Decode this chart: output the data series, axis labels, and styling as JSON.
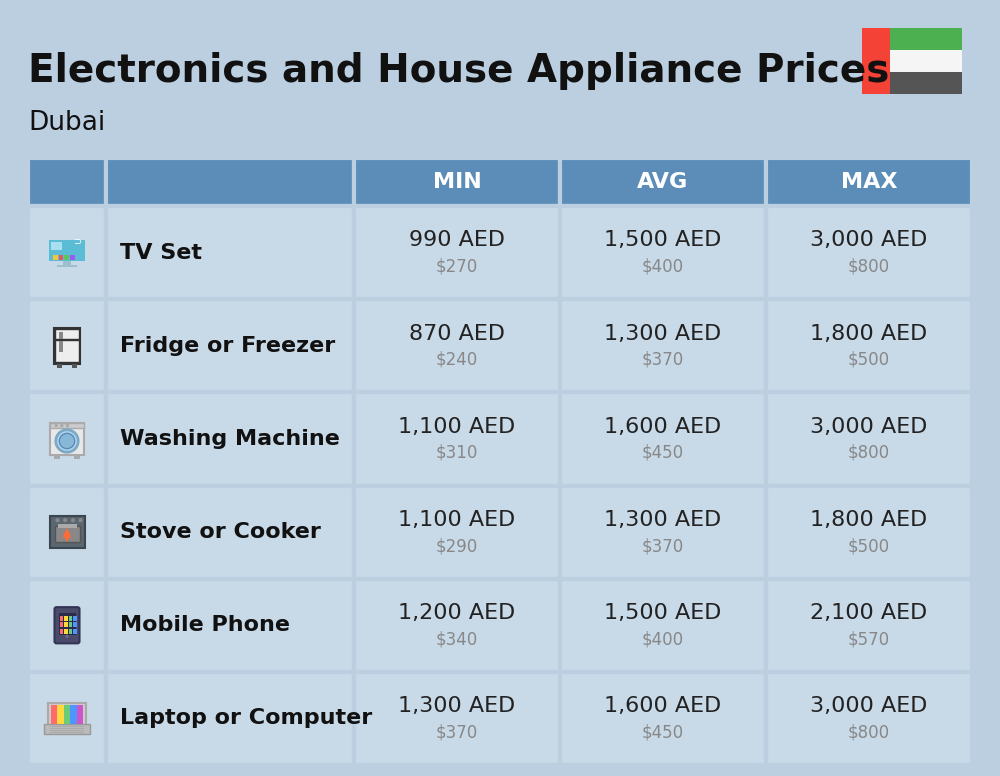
{
  "title": "Electronics and House Appliance Prices",
  "subtitle": "Dubai",
  "background_color": "#BBCFE0",
  "header_color": "#5B8DB8",
  "header_text_color": "#FFFFFF",
  "row_bg": "#C8D9E8",
  "border_color": "#BBCFE0",
  "columns": [
    "MIN",
    "AVG",
    "MAX"
  ],
  "rows": [
    {
      "name": "TV Set",
      "min_aed": "990 AED",
      "min_usd": "$270",
      "avg_aed": "1,500 AED",
      "avg_usd": "$400",
      "max_aed": "3,000 AED",
      "max_usd": "$800"
    },
    {
      "name": "Fridge or Freezer",
      "min_aed": "870 AED",
      "min_usd": "$240",
      "avg_aed": "1,300 AED",
      "avg_usd": "$370",
      "max_aed": "1,800 AED",
      "max_usd": "$500"
    },
    {
      "name": "Washing Machine",
      "min_aed": "1,100 AED",
      "min_usd": "$310",
      "avg_aed": "1,600 AED",
      "avg_usd": "$450",
      "max_aed": "3,000 AED",
      "max_usd": "$800"
    },
    {
      "name": "Stove or Cooker",
      "min_aed": "1,100 AED",
      "min_usd": "$290",
      "avg_aed": "1,300 AED",
      "avg_usd": "$370",
      "max_aed": "1,800 AED",
      "max_usd": "$500"
    },
    {
      "name": "Mobile Phone",
      "min_aed": "1,200 AED",
      "min_usd": "$340",
      "avg_aed": "1,500 AED",
      "avg_usd": "$400",
      "max_aed": "2,100 AED",
      "max_usd": "$570"
    },
    {
      "name": "Laptop or Computer",
      "min_aed": "1,300 AED",
      "min_usd": "$370",
      "avg_aed": "1,600 AED",
      "avg_usd": "$450",
      "max_aed": "3,000 AED",
      "max_usd": "$800"
    }
  ],
  "uae_flag": {
    "green": "#4CAF50",
    "white": "#F5F5F5",
    "black": "#555555",
    "red": "#F44336"
  },
  "title_fontsize": 28,
  "subtitle_fontsize": 19,
  "header_fontsize": 16,
  "item_name_fontsize": 16,
  "aed_fontsize": 16,
  "usd_fontsize": 12
}
